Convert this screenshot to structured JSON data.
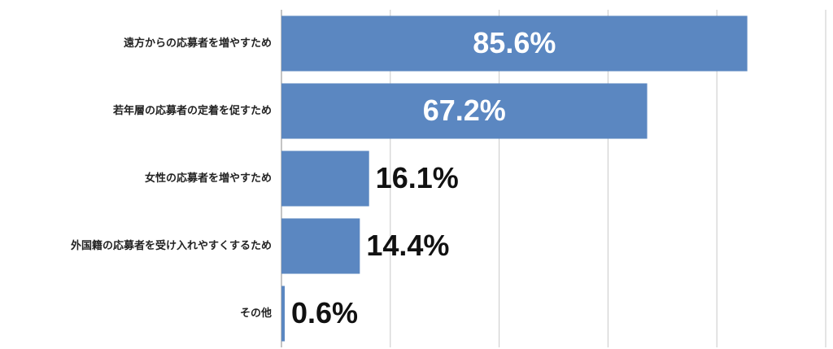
{
  "chart_data": {
    "type": "barh",
    "categories": [
      "遠方からの応募者を増やすため",
      "若年層の応募者の定着を促すため",
      "女性の応募者を増やすため",
      "外国籍の応募者を受け入れやすくするため",
      "その他"
    ],
    "values": [
      85.6,
      67.2,
      16.1,
      14.4,
      0.6
    ],
    "value_labels": [
      "85.6%",
      "67.2%",
      "16.1%",
      "14.4%",
      "0.6%"
    ],
    "color": "#5b87c1",
    "xlim": [
      0,
      100
    ],
    "xticks": [
      0,
      20,
      40,
      60,
      80,
      100
    ],
    "grid": true
  }
}
